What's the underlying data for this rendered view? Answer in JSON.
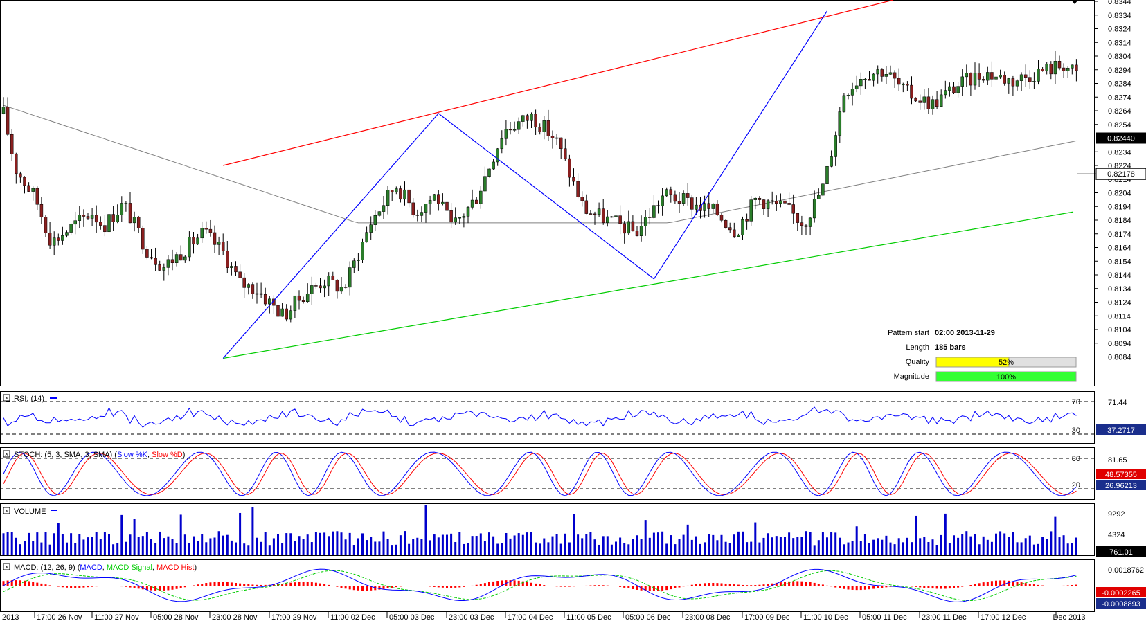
{
  "chart_data": [
    {
      "type": "candlestick",
      "panel": "price",
      "series": [
        {
          "name": "price",
          "color": "#2f2f2f"
        },
        {
          "name": "moving-average",
          "color": "#808080"
        }
      ],
      "price_ticks": [
        "0.8344",
        "0.8334",
        "0.8324",
        "0.8314",
        "0.8304",
        "0.8294",
        "0.8284",
        "0.8274",
        "0.8264",
        "0.8254",
        "0.8234",
        "0.8224",
        "0.8214",
        "0.8204",
        "0.8194",
        "0.8184",
        "0.8174",
        "0.8164",
        "0.8154",
        "0.8144",
        "0.8134",
        "0.8124",
        "0.8114",
        "0.8104",
        "0.8094",
        "0.8084"
      ],
      "ylim": [
        0.8079,
        0.8345
      ],
      "price_labels": {
        "upper": "0.82440",
        "current": "0.82178"
      },
      "pattern_info": {
        "pattern_start_label": "Pattern start",
        "pattern_start": "02:00 2013-11-29",
        "length_label": "Length",
        "length": "185 bars",
        "quality_label": "Quality",
        "quality": "52%",
        "quality_fraction": 0.52,
        "magnitude_label": "Magnitude",
        "magnitude": "100%",
        "magnitude_fraction": 1.0
      },
      "channel": {
        "upper_color": "#ff0000",
        "lower_color": "#00cc00",
        "zigzag_color": "#0000ff"
      }
    },
    {
      "type": "line",
      "panel": "rsi",
      "title": "RSI: (14)",
      "levels": [
        "70",
        "30"
      ],
      "axis_ticks": [
        "71.44"
      ],
      "current": "37.2717",
      "ylim": [
        0,
        100
      ]
    },
    {
      "type": "line",
      "panel": "stoch",
      "title": "STOCH: (5, 3, SMA, 3, SMA)",
      "series": [
        {
          "name": "Slow %K",
          "color": "#0000ff"
        },
        {
          "name": "Slow %D",
          "color": "#ff0000"
        }
      ],
      "levels": [
        "80",
        "20"
      ],
      "axis_ticks": [
        "81.65"
      ],
      "current_k": "48.57355",
      "current_d": "26.96213",
      "ylim": [
        0,
        100
      ]
    },
    {
      "type": "bar",
      "panel": "volume",
      "title": "VOLUME",
      "axis_ticks": [
        "9292",
        "4324"
      ],
      "current": "761.01",
      "ylim": [
        0,
        12000
      ]
    },
    {
      "type": "line",
      "panel": "macd",
      "title": "MACD: (12, 26, 9)",
      "series": [
        {
          "name": "MACD",
          "color": "#0000ff"
        },
        {
          "name": "MACD Signal",
          "color": "#00cc00"
        },
        {
          "name": "MACD Hist",
          "color": "#ff0000"
        }
      ],
      "axis_ticks": [
        "0.0018762"
      ],
      "current_a": "-0.0002265",
      "current_b": "-0.0008893"
    }
  ],
  "x_labels": [
    "2013",
    "17:00 26 Nov",
    "11:00 27 Nov",
    "05:00 28 Nov",
    "23:00 28 Nov",
    "17:00 29 Nov",
    "11:00 02 Dec",
    "05:00 03 Dec",
    "23:00 03 Dec",
    "17:00 04 Dec",
    "11:00 05 Dec",
    "05:00 06 Dec",
    "23:00 08 Dec",
    "17:00 09 Dec",
    "11:00 10 Dec",
    "05:00 11 Dec",
    "23:00 11 Dec",
    "17:00 12 Dec",
    "Dec 2013"
  ]
}
